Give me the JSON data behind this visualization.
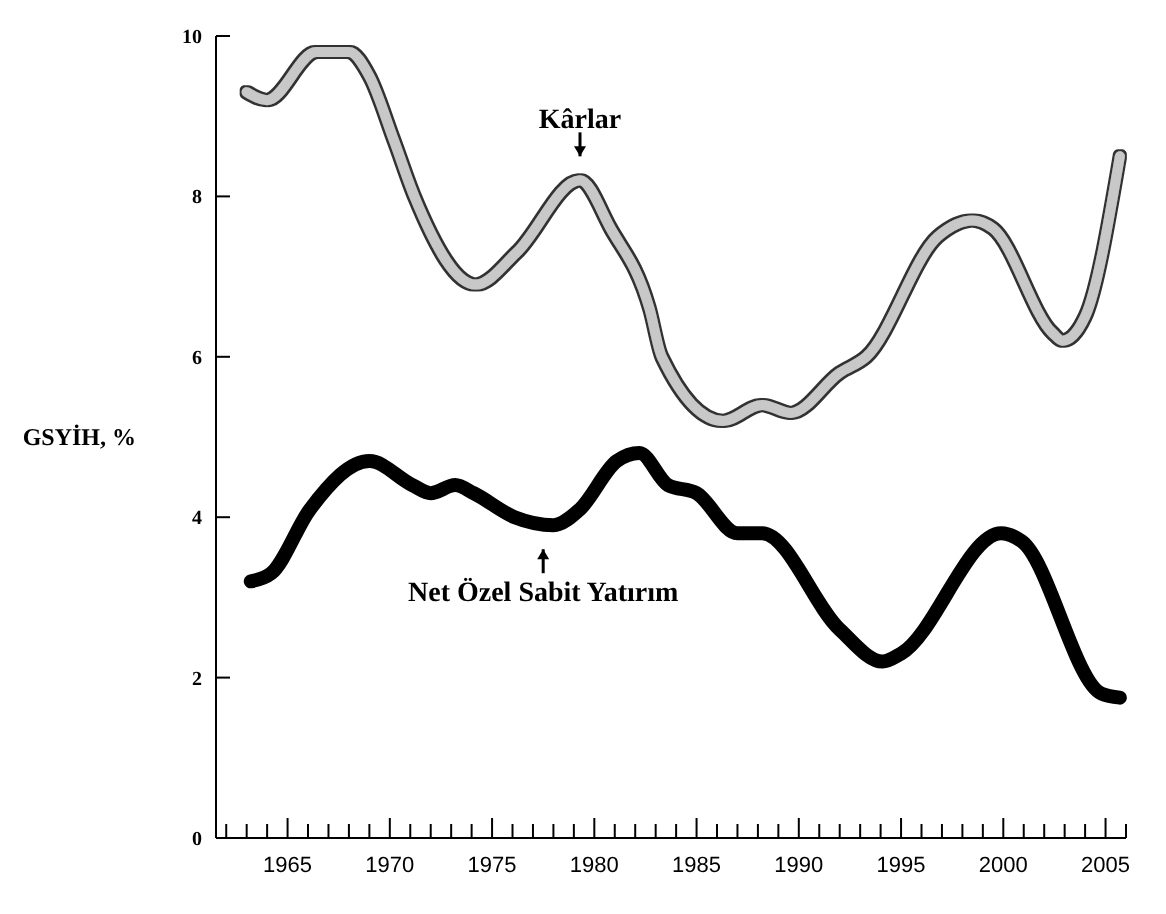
{
  "chart_data": {
    "type": "line",
    "ylabel": "GSYİH, %",
    "xlim": [
      1961.5,
      2006
    ],
    "xticks": [
      {
        "value": 1962,
        "label": null
      },
      {
        "value": 1963,
        "label": null
      },
      {
        "value": 1964,
        "label": null
      },
      1965,
      {
        "value": 1966,
        "label": null
      },
      {
        "value": 1967,
        "label": null
      },
      {
        "value": 1968,
        "label": null
      },
      {
        "value": 1969,
        "label": null
      },
      1970,
      {
        "value": 1971,
        "label": null
      },
      {
        "value": 1972,
        "label": null
      },
      {
        "value": 1973,
        "label": null
      },
      {
        "value": 1974,
        "label": null
      },
      1975,
      {
        "value": 1976,
        "label": null
      },
      {
        "value": 1977,
        "label": null
      },
      {
        "value": 1978,
        "label": null
      },
      {
        "value": 1979,
        "label": null
      },
      1980,
      {
        "value": 1981,
        "label": null
      },
      {
        "value": 1982,
        "label": null
      },
      {
        "value": 1983,
        "label": null
      },
      {
        "value": 1984,
        "label": null
      },
      1985,
      {
        "value": 1986,
        "label": null
      },
      {
        "value": 1987,
        "label": null
      },
      {
        "value": 1988,
        "label": null
      },
      {
        "value": 1989,
        "label": null
      },
      1990,
      {
        "value": 1991,
        "label": null
      },
      {
        "value": 1992,
        "label": null
      },
      {
        "value": 1993,
        "label": null
      },
      {
        "value": 1994,
        "label": null
      },
      1995,
      {
        "value": 1996,
        "label": null
      },
      {
        "value": 1997,
        "label": null
      },
      {
        "value": 1998,
        "label": null
      },
      {
        "value": 1999,
        "label": null
      },
      2000,
      {
        "value": 2001,
        "label": null
      },
      {
        "value": 2002,
        "label": null
      },
      {
        "value": 2003,
        "label": null
      },
      {
        "value": 2004,
        "label": null
      },
      2005,
      {
        "value": 2006,
        "label": null
      }
    ],
    "ylim": [
      0,
      10
    ],
    "yticks": [
      0,
      2,
      4,
      6,
      8,
      10
    ],
    "grid": false,
    "marker": "none",
    "line_style": "solid",
    "series": [
      {
        "color": "#c8c8c8",
        "x": [
          1963,
          1964,
          1966.4,
          1968,
          1969,
          1970.2,
          1971.2,
          1974.2,
          1976.2,
          1979.3,
          1980.8,
          1982.7,
          1983.3,
          1986.3,
          1988.2,
          1989.6,
          1992,
          1993.3,
          1996.8,
          1998.5,
          1999.5,
          2002.4,
          2002.9,
          2004,
          2005.7
        ],
        "values": [
          9.3,
          9.2,
          9.8,
          9.8,
          9.5,
          8.7,
          8.0,
          6.9,
          7.3,
          8.2,
          7.6,
          6.6,
          6.0,
          5.2,
          5.4,
          5.3,
          5.8,
          6.0,
          7.5,
          7.7,
          7.6,
          6.3,
          6.2,
          6.5,
          8.5
        ]
      },
      {
        "color": "#000000",
        "x": [
          1963.2,
          1964.2,
          1966.1,
          1969,
          1971.1,
          1972,
          1973.2,
          1974.1,
          1976.1,
          1978,
          1979.3,
          1981.1,
          1982.2,
          1983.6,
          1985,
          1987,
          1988.2,
          1992,
          1994.1,
          1995,
          1999.9,
          2000.9,
          2004.8,
          2005.7
        ],
        "values": [
          3.2,
          3.3,
          4.1,
          4.7,
          4.4,
          4.3,
          4.4,
          4.3,
          4.0,
          3.9,
          4.1,
          4.7,
          4.8,
          4.4,
          4.3,
          3.8,
          3.8,
          2.6,
          2.2,
          2.3,
          3.8,
          3.7,
          1.8,
          1.75
        ]
      }
    ],
    "annotations": [
      {
        "text": "Kârlar",
        "x": 1979.3,
        "y": 8.2
      },
      {
        "text": "Net Özel Sabit Yatırım",
        "x": 1977.5,
        "y": 3.9
      }
    ]
  }
}
